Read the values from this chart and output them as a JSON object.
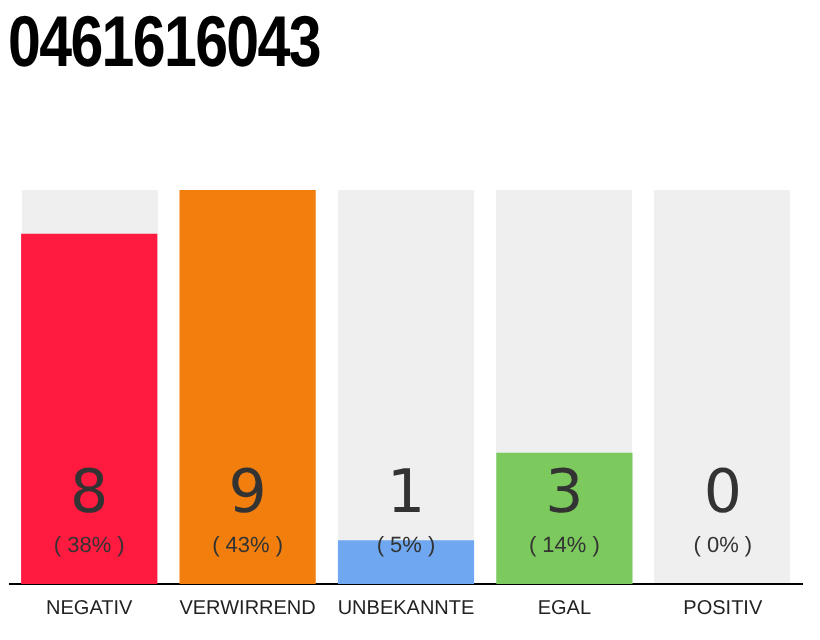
{
  "chart_data": {
    "type": "bar",
    "title": "0461616043",
    "categories": [
      "NEGATIV",
      "VERWIRREND",
      "UNBEKANNTE",
      "EGAL",
      "POSITIV"
    ],
    "values": [
      8,
      9,
      1,
      3,
      0
    ],
    "colors": [
      "#ff1a40",
      "#f27f0d",
      "#6fa8f0",
      "#7cca5e",
      "#bdbdbd"
    ],
    "data_labels": true,
    "annotations": [
      "( 38% )",
      "( 43% )",
      "( 5% )",
      "( 14% )",
      "( 0% )"
    ],
    "grid": false,
    "legend": false
  }
}
